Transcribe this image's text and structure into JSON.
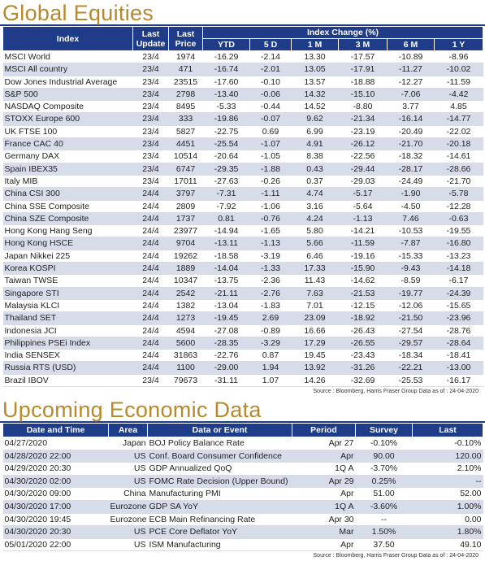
{
  "equities": {
    "title": "Global Equities",
    "headers": {
      "index": "Index",
      "last_update": "Last Update",
      "last_price": "Last Price",
      "index_change": "Index Change (%)",
      "ytd": "YTD",
      "d5": "5 D",
      "m1": "1 M",
      "m3": "3 M",
      "m6": "6 M",
      "y1": "1 Y"
    },
    "rows": [
      {
        "name": "MSCI World",
        "date": "23/4",
        "price": "1974",
        "ytd": "-16.29",
        "d5": "-2.14",
        "m1": "13.30",
        "m3": "-17.57",
        "m6": "-10.89",
        "y1": "-8.96"
      },
      {
        "name": "MSCI All country",
        "date": "23/4",
        "price": "471",
        "ytd": "-16.74",
        "d5": "-2.01",
        "m1": "13.05",
        "m3": "-17.91",
        "m6": "-11.27",
        "y1": "-10.02"
      },
      {
        "name": "Dow Jones Industrial Average",
        "date": "23/4",
        "price": "23515",
        "ytd": "-17.60",
        "d5": "-0.10",
        "m1": "13.57",
        "m3": "-18.88",
        "m6": "-12.27",
        "y1": "-11.59"
      },
      {
        "name": "S&P 500",
        "date": "23/4",
        "price": "2798",
        "ytd": "-13.40",
        "d5": "-0.06",
        "m1": "14.32",
        "m3": "-15.10",
        "m6": "-7.06",
        "y1": "-4.42"
      },
      {
        "name": "NASDAQ Composite",
        "date": "23/4",
        "price": "8495",
        "ytd": "-5.33",
        "d5": "-0.44",
        "m1": "14.52",
        "m3": "-8.80",
        "m6": "3.77",
        "y1": "4.85"
      },
      {
        "name": "STOXX Europe 600",
        "date": "23/4",
        "price": "333",
        "ytd": "-19.86",
        "d5": "-0.07",
        "m1": "9.62",
        "m3": "-21.34",
        "m6": "-16.14",
        "y1": "-14.77"
      },
      {
        "name": "UK FTSE 100",
        "date": "23/4",
        "price": "5827",
        "ytd": "-22.75",
        "d5": "0.69",
        "m1": "6.99",
        "m3": "-23.19",
        "m6": "-20.49",
        "y1": "-22.02"
      },
      {
        "name": "France CAC 40",
        "date": "23/4",
        "price": "4451",
        "ytd": "-25.54",
        "d5": "-1.07",
        "m1": "4.91",
        "m3": "-26.12",
        "m6": "-21.70",
        "y1": "-20.18"
      },
      {
        "name": "Germany DAX",
        "date": "23/4",
        "price": "10514",
        "ytd": "-20.64",
        "d5": "-1.05",
        "m1": "8.38",
        "m3": "-22.56",
        "m6": "-18.32",
        "y1": "-14.61"
      },
      {
        "name": "Spain IBEX35",
        "date": "23/4",
        "price": "6747",
        "ytd": "-29.35",
        "d5": "-1.88",
        "m1": "0.43",
        "m3": "-29.44",
        "m6": "-28.17",
        "y1": "-28.66"
      },
      {
        "name": "Italy MIB",
        "date": "23/4",
        "price": "17011",
        "ytd": "-27.63",
        "d5": "-0.26",
        "m1": "0.37",
        "m3": "-29.03",
        "m6": "-24.49",
        "y1": "-21.70"
      },
      {
        "name": "China CSI 300",
        "date": "24/4",
        "price": "3797",
        "ytd": "-7.31",
        "d5": "-1.11",
        "m1": "4.74",
        "m3": "-5.17",
        "m6": "-1.90",
        "y1": "-5.78"
      },
      {
        "name": "China SSE Composite",
        "date": "24/4",
        "price": "2809",
        "ytd": "-7.92",
        "d5": "-1.06",
        "m1": "3.16",
        "m3": "-5.64",
        "m6": "-4.50",
        "y1": "-12.28"
      },
      {
        "name": "China SZE Composite",
        "date": "24/4",
        "price": "1737",
        "ytd": "0.81",
        "d5": "-0.76",
        "m1": "4.24",
        "m3": "-1.13",
        "m6": "7.46",
        "y1": "-0.63"
      },
      {
        "name": "Hong Kong Hang Seng",
        "date": "24/4",
        "price": "23977",
        "ytd": "-14.94",
        "d5": "-1.65",
        "m1": "5.80",
        "m3": "-14.21",
        "m6": "-10.53",
        "y1": "-19.55"
      },
      {
        "name": "Hong Kong HSCE",
        "date": "24/4",
        "price": "9704",
        "ytd": "-13.11",
        "d5": "-1.13",
        "m1": "5.66",
        "m3": "-11.59",
        "m6": "-7.87",
        "y1": "-16.80"
      },
      {
        "name": "Japan Nikkei 225",
        "date": "24/4",
        "price": "19262",
        "ytd": "-18.58",
        "d5": "-3.19",
        "m1": "6.46",
        "m3": "-19.16",
        "m6": "-15.33",
        "y1": "-13.23"
      },
      {
        "name": "Korea KOSPI",
        "date": "24/4",
        "price": "1889",
        "ytd": "-14.04",
        "d5": "-1.33",
        "m1": "17.33",
        "m3": "-15.90",
        "m6": "-9.43",
        "y1": "-14.18"
      },
      {
        "name": "Taiwan TWSE",
        "date": "24/4",
        "price": "10347",
        "ytd": "-13.75",
        "d5": "-2.36",
        "m1": "11.43",
        "m3": "-14.62",
        "m6": "-8.59",
        "y1": "-6.17"
      },
      {
        "name": "Singapore STI",
        "date": "24/4",
        "price": "2542",
        "ytd": "-21.11",
        "d5": "-2.76",
        "m1": "7.63",
        "m3": "-21.53",
        "m6": "-19.77",
        "y1": "-24.39"
      },
      {
        "name": "Malaysia KLCI",
        "date": "24/4",
        "price": "1382",
        "ytd": "-13.04",
        "d5": "-1.83",
        "m1": "7.01",
        "m3": "-12.15",
        "m6": "-12.06",
        "y1": "-15.65"
      },
      {
        "name": "Thailand SET",
        "date": "24/4",
        "price": "1273",
        "ytd": "-19.45",
        "d5": "2.69",
        "m1": "23.09",
        "m3": "-18.92",
        "m6": "-21.50",
        "y1": "-23.96"
      },
      {
        "name": "Indonesia JCI",
        "date": "24/4",
        "price": "4594",
        "ytd": "-27.08",
        "d5": "-0.89",
        "m1": "16.66",
        "m3": "-26.43",
        "m6": "-27.54",
        "y1": "-28.76"
      },
      {
        "name": "Philippines PSEi Index",
        "date": "24/4",
        "price": "5600",
        "ytd": "-28.35",
        "d5": "-3.29",
        "m1": "17.29",
        "m3": "-26.55",
        "m6": "-29.57",
        "y1": "-28.64"
      },
      {
        "name": "India SENSEX",
        "date": "24/4",
        "price": "31863",
        "ytd": "-22.76",
        "d5": "0.87",
        "m1": "19.45",
        "m3": "-23.43",
        "m6": "-18.34",
        "y1": "-18.41"
      },
      {
        "name": "Russia RTS (USD)",
        "date": "24/4",
        "price": "1100",
        "ytd": "-29.00",
        "d5": "1.94",
        "m1": "13.92",
        "m3": "-31.26",
        "m6": "-22.21",
        "y1": "-13.00"
      },
      {
        "name": "Brazil IBOV",
        "date": "23/4",
        "price": "79673",
        "ytd": "-31.11",
        "d5": "1.07",
        "m1": "14.26",
        "m3": "-32.69",
        "m6": "-25.53",
        "y1": "-16.17"
      }
    ],
    "source": "Source : Bloomberg, Harris Fraser Group Data as of : 24-04-2020"
  },
  "economic": {
    "title": "Upcoming Economic Data",
    "headers": {
      "datetime": "Date and Time",
      "area": "Area",
      "event": "Data or Event",
      "period": "Period",
      "survey": "Survey",
      "last": "Last"
    },
    "rows": [
      {
        "datetime": "04/27/2020",
        "area": "Japan",
        "event": "BOJ Policy Balance Rate",
        "period": "Apr 27",
        "survey": "-0.10%",
        "last": "-0.10%"
      },
      {
        "datetime": "04/28/2020 22:00",
        "area": "US",
        "event": "Conf. Board Consumer Confidence",
        "period": "Apr",
        "survey": "90.00",
        "last": "120.00"
      },
      {
        "datetime": "04/29/2020 20:30",
        "area": "US",
        "event": "GDP Annualized QoQ",
        "period": "1Q A",
        "survey": "-3.70%",
        "last": "2.10%"
      },
      {
        "datetime": "04/30/2020 02:00",
        "area": "US",
        "event": "FOMC Rate Decision (Upper Bound)",
        "period": "Apr 29",
        "survey": "0.25%",
        "last": "--"
      },
      {
        "datetime": "04/30/2020 09:00",
        "area": "China",
        "event": "Manufacturing PMI",
        "period": "Apr",
        "survey": "51.00",
        "last": "52.00"
      },
      {
        "datetime": "04/30/2020 17:00",
        "area": "Eurozone",
        "event": "GDP SA YoY",
        "period": "1Q A",
        "survey": "-3.60%",
        "last": "1.00%"
      },
      {
        "datetime": "04/30/2020 19:45",
        "area": "Eurozone",
        "event": "ECB Main Refinancing Rate",
        "period": "Apr 30",
        "survey": "--",
        "last": "0.00"
      },
      {
        "datetime": "04/30/2020 20:30",
        "area": "US",
        "event": "PCE Core Deflator YoY",
        "period": "Mar",
        "survey": "1.50%",
        "last": "1.80%"
      },
      {
        "datetime": "05/01/2020 22:00",
        "area": "US",
        "event": "ISM Manufacturing",
        "period": "Apr",
        "survey": "37.50",
        "last": "49.10"
      }
    ],
    "source": "Source : Bloomberg, Harris Fraser Group Data as of : 24-04-2020"
  }
}
